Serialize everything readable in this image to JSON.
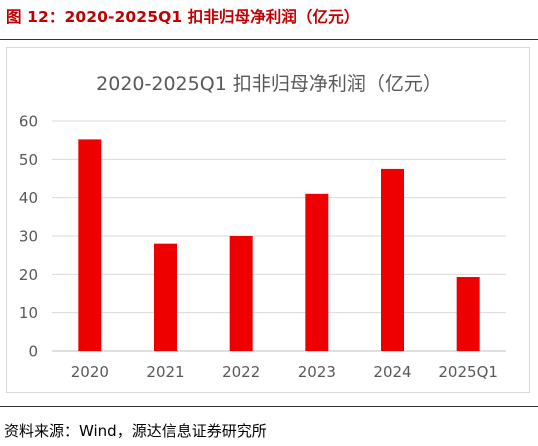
{
  "figure": {
    "title": "图 12：2020-2025Q1 扣非归母净利润（亿元）",
    "source": "资料来源：Wind，源达信息证券研究所"
  },
  "colors": {
    "bar": "#ee0000",
    "title": "#c00000",
    "grid": "#d9d9d9",
    "tick": "#595959"
  },
  "chart_data": {
    "type": "bar",
    "title": "2020-2025Q1 扣非归母净利润（亿元）",
    "categories": [
      "2020",
      "2021",
      "2022",
      "2023",
      "2024",
      "2025Q1"
    ],
    "values": [
      55.2,
      28.0,
      30.0,
      41.0,
      47.5,
      19.3
    ],
    "yticks": [
      0,
      10,
      20,
      30,
      40,
      50,
      60
    ],
    "ylim": [
      0,
      60
    ],
    "xlabel": "",
    "ylabel": "",
    "grid": true,
    "legend": "none"
  }
}
